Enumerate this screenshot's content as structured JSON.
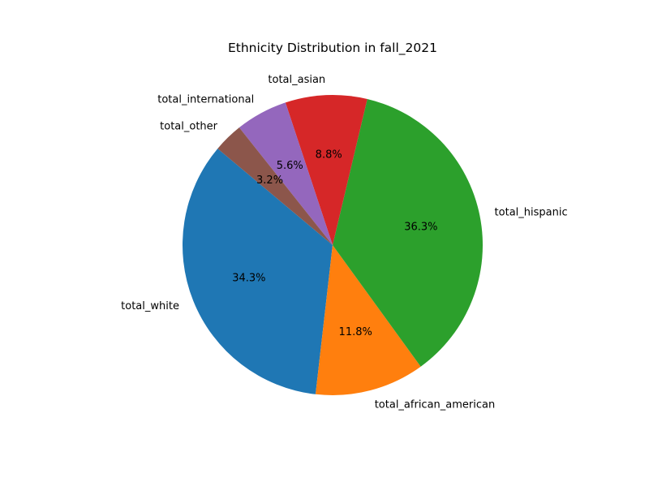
{
  "chart_data": {
    "type": "pie",
    "title": "Ethnicity Distribution in fall_2021",
    "start_angle_deg": 140,
    "direction": "counterclockwise",
    "slices": [
      {
        "label": "total_white",
        "value": 34.3,
        "pct_label": "34.3%",
        "color": "#1f77b4"
      },
      {
        "label": "total_african_american",
        "value": 11.8,
        "pct_label": "11.8%",
        "color": "#ff7f0e"
      },
      {
        "label": "total_hispanic",
        "value": 36.3,
        "pct_label": "36.3%",
        "color": "#2ca02c"
      },
      {
        "label": "total_asian",
        "value": 8.8,
        "pct_label": "8.8%",
        "color": "#d62728"
      },
      {
        "label": "total_international",
        "value": 5.6,
        "pct_label": "5.6%",
        "color": "#9467bd"
      },
      {
        "label": "total_other",
        "value": 3.2,
        "pct_label": "3.2%",
        "color": "#8c564b"
      }
    ]
  }
}
